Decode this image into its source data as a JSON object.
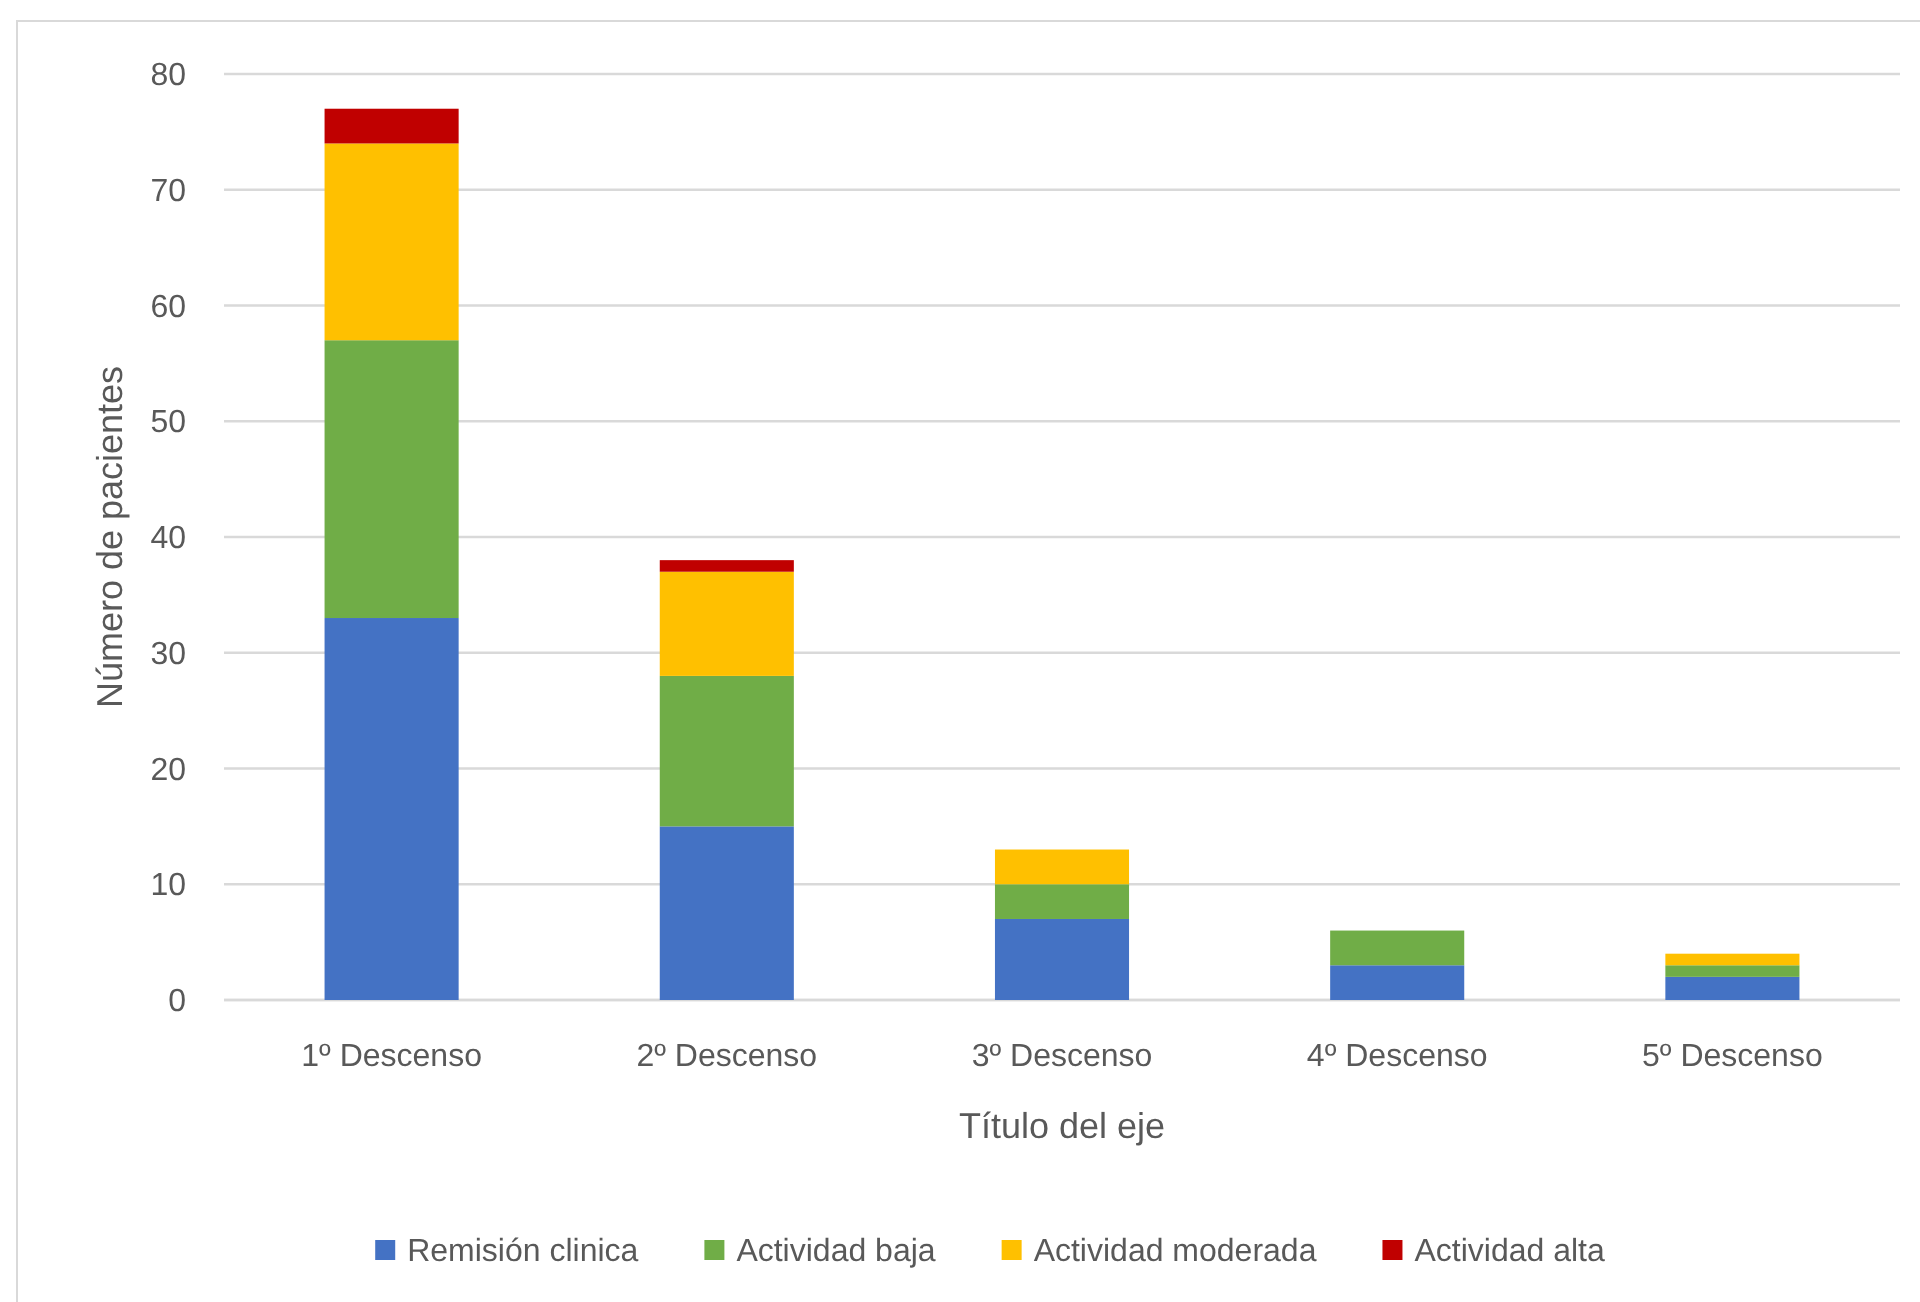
{
  "chart_data": {
    "type": "bar",
    "stacked": true,
    "xlabel": "Título del eje",
    "ylabel": "Número de pacientes",
    "categories": [
      "1º Descenso",
      "2º Descenso",
      "3º Descenso",
      "4º Descenso",
      "5º Descenso"
    ],
    "series": [
      {
        "name": "Remisión clinica",
        "color": "#4472c4",
        "values": [
          33,
          15,
          7,
          3,
          2
        ]
      },
      {
        "name": "Actividad baja",
        "color": "#70ad47",
        "values": [
          24,
          13,
          3,
          3,
          1
        ]
      },
      {
        "name": "Actividad moderada",
        "color": "#ffc000",
        "values": [
          17,
          9,
          3,
          0,
          1
        ]
      },
      {
        "name": "Actividad alta",
        "color": "#c00000",
        "values": [
          3,
          1,
          0,
          0,
          0
        ]
      }
    ],
    "ylim": [
      0,
      80
    ],
    "yticks": [
      0,
      10,
      20,
      30,
      40,
      50,
      60,
      70,
      80
    ],
    "grid": "y",
    "legend": "bottom"
  }
}
